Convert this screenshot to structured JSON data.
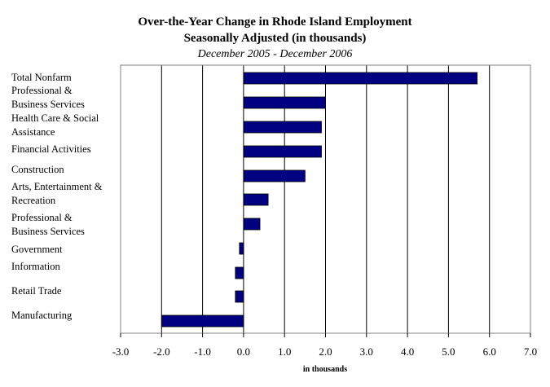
{
  "chart_data": {
    "type": "bar",
    "orientation": "horizontal",
    "title": "Over-the-Year Change in Rhode Island Employment",
    "subtitle": "Seasonally Adjusted (in thousands)",
    "period": "December 2005 - December 2006",
    "xlabel": "in thousands",
    "ylabel": "",
    "xlim": [
      -3.0,
      7.0
    ],
    "x_ticks": [
      "-3.0",
      "-2.0",
      "-1.0",
      "0.0",
      "1.0",
      "2.0",
      "3.0",
      "4.0",
      "5.0",
      "6.0",
      "7.0"
    ],
    "grid": "vertical",
    "bar_color": "#000080",
    "categories": [
      [
        "Total Nonfarm"
      ],
      [
        "Professional &",
        "Business Services"
      ],
      [
        "Health Care & Social",
        "Assistance"
      ],
      [
        "Financial Activities"
      ],
      [
        "Construction"
      ],
      [
        "Arts, Entertainment &",
        "Recreation"
      ],
      [
        "Professional &",
        "Business Services"
      ],
      [
        "Government"
      ],
      [
        "Information"
      ],
      [
        "Retail Trade"
      ],
      [
        "Manufacturing"
      ]
    ],
    "values": [
      5.7,
      2.0,
      1.9,
      1.9,
      1.5,
      0.6,
      0.4,
      -0.1,
      -0.2,
      -0.2,
      -2.0
    ]
  }
}
